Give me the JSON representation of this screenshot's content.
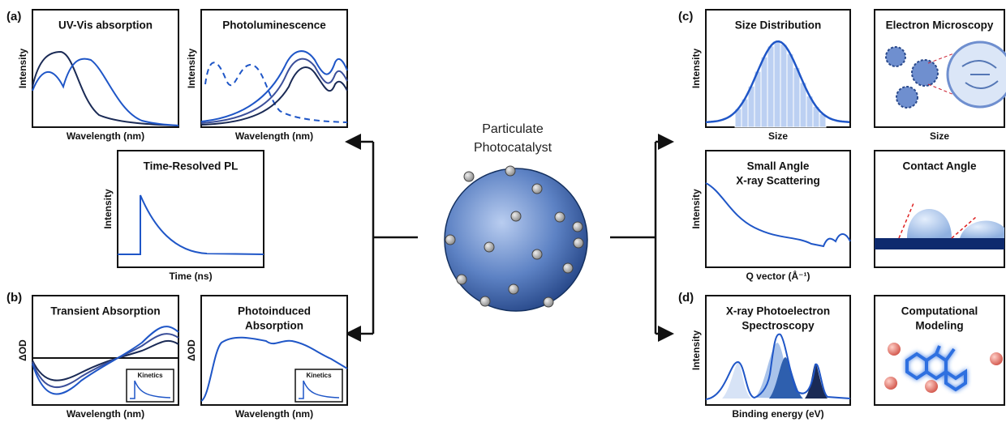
{
  "panel_labels": [
    "(a)",
    "(b)",
    "(c)",
    "(d)"
  ],
  "center": {
    "title": [
      "Particulate",
      "Photocatalyst"
    ]
  },
  "panels": [
    {
      "title": [
        "UV-Vis absorption"
      ],
      "x_label": "Wavelength (nm)",
      "y_label": "Intensity"
    },
    {
      "title": [
        "Photoluminescence"
      ],
      "x_label": "Wavelength (nm)",
      "y_label": "Intensity"
    },
    {
      "title": [
        "Time-Resolved PL"
      ],
      "x_label": "Time (ns)",
      "y_label": "Intensity"
    },
    {
      "title": [
        "Transient Absorption"
      ],
      "x_label": "Wavelength (nm)",
      "y_label": "ΔOD",
      "inset": "Kinetics"
    },
    {
      "title": [
        "Photoinduced",
        "Absorption"
      ],
      "x_label": "Wavelength (nm)",
      "y_label": "ΔOD",
      "inset": "Kinetics"
    },
    {
      "title": [
        "Size Distribution"
      ],
      "x_label": "Size",
      "y_label": "Intensity"
    },
    {
      "title": [
        "Electron Microscopy"
      ],
      "x_label": "Size"
    },
    {
      "title": [
        "Small Angle",
        "X-ray Scattering"
      ],
      "x_label": "Q vector (Å⁻¹)",
      "y_label": "Intensity"
    },
    {
      "title": [
        "Contact Angle"
      ]
    },
    {
      "title": [
        "X-ray Photoelectron",
        "Spectroscopy"
      ],
      "x_label": "Binding energy (eV)",
      "y_label": "Intensity"
    },
    {
      "title": [
        "Computational",
        "Modeling"
      ]
    }
  ]
}
